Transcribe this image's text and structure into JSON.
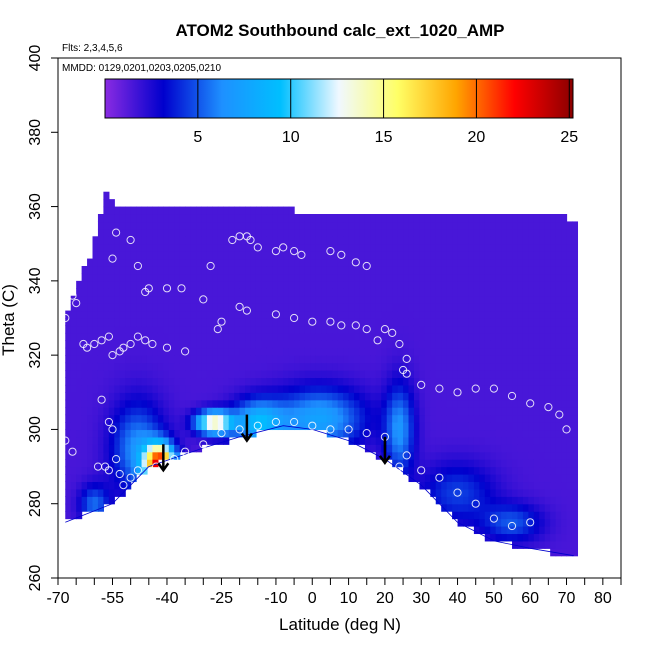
{
  "chart_data": {
    "type": "heatmap",
    "title": "ATOM2 Southbound calc_ext_1020_AMP",
    "subtitle_flights": "Flts: 2,3,4,5,6",
    "subtitle_dates": "MMDD: 0129,0201,0203,0205,0210",
    "xlabel": "Latitude (deg N)",
    "ylabel": "Theta (C)",
    "xlim": [
      -70,
      85
    ],
    "ylim": [
      260,
      400
    ],
    "x_ticks": [
      -70,
      -55,
      -40,
      -25,
      -10,
      0,
      10,
      20,
      30,
      40,
      50,
      60,
      70,
      80
    ],
    "x_tick_labels": [
      "-70",
      "-55",
      "-40",
      "-25",
      "-10",
      "0",
      "10",
      "20",
      "30",
      "40",
      "50",
      "60",
      "70",
      "80"
    ],
    "x_minor_ticks": [
      -65,
      -60,
      -50,
      -45,
      -35,
      -30,
      -20,
      -15,
      -5,
      5,
      15,
      25,
      35,
      45,
      55,
      65,
      75,
      85
    ],
    "y_ticks": [
      260,
      280,
      300,
      320,
      340,
      360,
      380,
      400
    ],
    "y_tick_labels": [
      "260",
      "280",
      "300",
      "320",
      "340",
      "360",
      "380",
      "400"
    ],
    "colorbar": {
      "range": [
        0,
        25.2
      ],
      "ticks": [
        5,
        10,
        15,
        20,
        25
      ],
      "tick_labels": [
        "5",
        "10",
        "15",
        "20",
        "25"
      ],
      "colors": [
        "#8a2be2",
        "#0000cd",
        "#1e90ff",
        "#00bfff",
        "#f0f8ff",
        "#ffff66",
        "#ffa500",
        "#ff0000",
        "#8b0000"
      ]
    },
    "background_value": 1.5,
    "domain_top": [
      [
        -68,
        330
      ],
      [
        -60,
        350
      ],
      [
        -57,
        363
      ],
      [
        -56,
        367
      ],
      [
        -55,
        360
      ],
      [
        -53,
        360
      ],
      [
        -20,
        360
      ],
      [
        10,
        358
      ],
      [
        40,
        358
      ],
      [
        70,
        357
      ],
      [
        72,
        355
      ]
    ],
    "domain_bottom": [
      [
        -68,
        275
      ],
      [
        -55,
        280
      ],
      [
        -45,
        290
      ],
      [
        -30,
        295
      ],
      [
        -20,
        298
      ],
      [
        -8,
        301
      ],
      [
        0,
        300
      ],
      [
        10,
        297
      ],
      [
        20,
        292
      ],
      [
        30,
        285
      ],
      [
        40,
        275
      ],
      [
        50,
        270
      ],
      [
        60,
        268
      ],
      [
        72,
        266
      ]
    ],
    "features": [
      {
        "lat": -42,
        "theta": 291,
        "slat": 4,
        "stheta": 5,
        "value": 20
      },
      {
        "lat": -27,
        "theta": 302,
        "slat": 5,
        "stheta": 3,
        "value": 13
      },
      {
        "lat": -15,
        "theta": 302,
        "slat": 7,
        "stheta": 6,
        "value": 7
      },
      {
        "lat": 2,
        "theta": 303,
        "slat": 12,
        "stheta": 8,
        "value": 6
      },
      {
        "lat": -48,
        "theta": 295,
        "slat": 7,
        "stheta": 12,
        "value": 5
      },
      {
        "lat": 24,
        "theta": 300,
        "slat": 4,
        "stheta": 12,
        "value": 5
      },
      {
        "lat": -60,
        "theta": 280,
        "slat": 4,
        "stheta": 5,
        "value": 4
      },
      {
        "lat": 40,
        "theta": 283,
        "slat": 10,
        "stheta": 8,
        "value": 3
      },
      {
        "lat": 55,
        "theta": 275,
        "slat": 8,
        "stheta": 5,
        "value": 3.5
      }
    ],
    "arrows": [
      {
        "lat": -41,
        "theta_top": 296,
        "theta_tip": 289
      },
      {
        "lat": -18,
        "theta_top": 304,
        "theta_tip": 297
      },
      {
        "lat": 20,
        "theta_top": 298,
        "theta_tip": 291
      }
    ],
    "sample_points": [
      [
        -68,
        330
      ],
      [
        -66,
        336
      ],
      [
        -65,
        334
      ],
      [
        -63,
        323
      ],
      [
        -62,
        322
      ],
      [
        -60,
        323
      ],
      [
        -58,
        324
      ],
      [
        -56,
        325
      ],
      [
        -55,
        346
      ],
      [
        -54,
        353
      ],
      [
        -50,
        351
      ],
      [
        -48,
        344
      ],
      [
        -46,
        337
      ],
      [
        -45,
        338
      ],
      [
        -40,
        338
      ],
      [
        -36,
        338
      ],
      [
        -30,
        335
      ],
      [
        -28,
        344
      ],
      [
        -26,
        327
      ],
      [
        -25,
        329
      ],
      [
        -22,
        351
      ],
      [
        -20,
        352
      ],
      [
        -18,
        352
      ],
      [
        -17,
        351
      ],
      [
        -15,
        349
      ],
      [
        -10,
        348
      ],
      [
        -8,
        349
      ],
      [
        -5,
        348
      ],
      [
        -3,
        347
      ],
      [
        5,
        348
      ],
      [
        8,
        347
      ],
      [
        12,
        345
      ],
      [
        15,
        344
      ],
      [
        -55,
        320
      ],
      [
        -53,
        321
      ],
      [
        -52,
        322
      ],
      [
        -50,
        323
      ],
      [
        -48,
        325
      ],
      [
        -46,
        324
      ],
      [
        -44,
        323
      ],
      [
        -40,
        322
      ],
      [
        -35,
        321
      ],
      [
        -20,
        333
      ],
      [
        -18,
        332
      ],
      [
        -10,
        331
      ],
      [
        -5,
        330
      ],
      [
        0,
        329
      ],
      [
        5,
        329
      ],
      [
        8,
        328
      ],
      [
        12,
        328
      ],
      [
        15,
        327
      ],
      [
        18,
        324
      ],
      [
        20,
        327
      ],
      [
        22,
        326
      ],
      [
        24,
        323
      ],
      [
        26,
        319
      ],
      [
        25,
        316
      ],
      [
        26,
        315
      ],
      [
        30,
        312
      ],
      [
        35,
        311
      ],
      [
        40,
        310
      ],
      [
        45,
        311
      ],
      [
        50,
        311
      ],
      [
        55,
        309
      ],
      [
        60,
        307
      ],
      [
        65,
        306
      ],
      [
        68,
        304
      ],
      [
        -68,
        297
      ],
      [
        -66,
        294
      ],
      [
        -58,
        308
      ],
      [
        -56,
        302
      ],
      [
        -55,
        300
      ],
      [
        -54,
        292
      ],
      [
        -57,
        290
      ],
      [
        -59,
        290
      ],
      [
        -56,
        289
      ],
      [
        -53,
        288
      ],
      [
        -52,
        285
      ],
      [
        -50,
        287
      ],
      [
        -48,
        289
      ],
      [
        -43,
        290
      ],
      [
        -38,
        292
      ],
      [
        -35,
        294
      ],
      [
        -30,
        296
      ],
      [
        -25,
        299
      ],
      [
        -20,
        300
      ],
      [
        -15,
        301
      ],
      [
        -10,
        302
      ],
      [
        -5,
        302
      ],
      [
        0,
        301
      ],
      [
        5,
        300
      ],
      [
        10,
        300
      ],
      [
        15,
        299
      ],
      [
        20,
        298
      ],
      [
        24,
        290
      ],
      [
        26,
        293
      ],
      [
        30,
        289
      ],
      [
        35,
        287
      ],
      [
        40,
        283
      ],
      [
        45,
        280
      ],
      [
        50,
        276
      ],
      [
        55,
        274
      ],
      [
        60,
        275
      ],
      [
        70,
        300
      ]
    ]
  }
}
